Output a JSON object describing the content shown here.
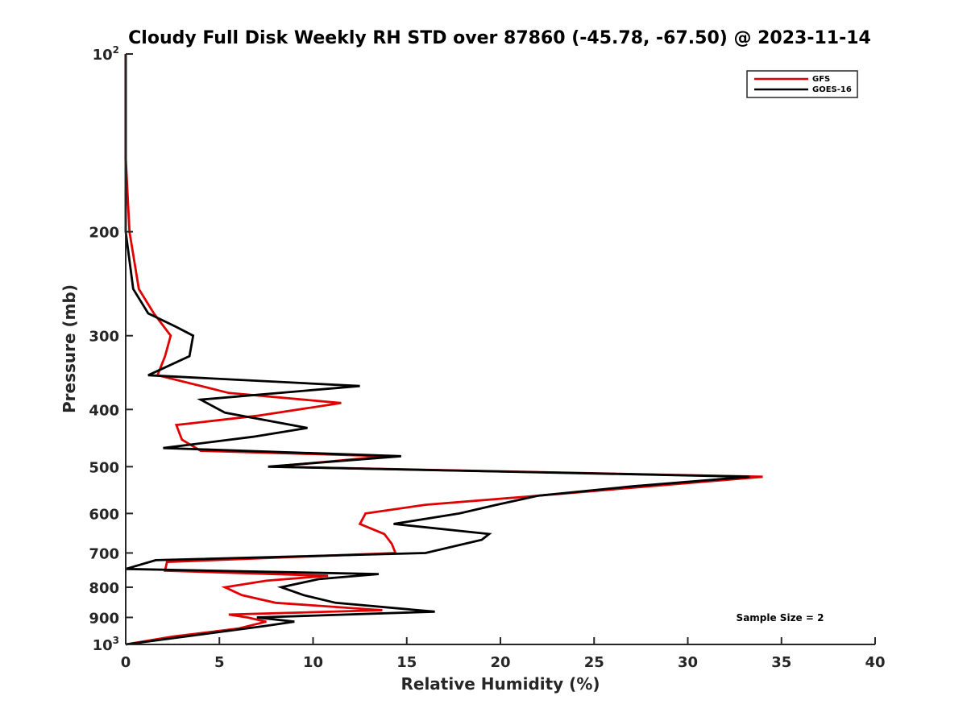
{
  "chart_data": {
    "type": "line",
    "title": "Cloudy Full Disk Weekly RH STD over 87860 (-45.78, -67.50) @ 2023-11-14",
    "xlabel": "Relative Humidity (%)",
    "ylabel": "Pressure (mb)",
    "xlim": [
      0,
      40
    ],
    "ylim": [
      100,
      1000
    ],
    "yscale": "log",
    "y_reversed": true,
    "x_ticks": [
      {
        "value": 0,
        "label": "0"
      },
      {
        "value": 5,
        "label": "5"
      },
      {
        "value": 10,
        "label": "10"
      },
      {
        "value": 15,
        "label": "15"
      },
      {
        "value": 20,
        "label": "20"
      },
      {
        "value": 25,
        "label": "25"
      },
      {
        "value": 30,
        "label": "30"
      },
      {
        "value": 35,
        "label": "35"
      },
      {
        "value": 40,
        "label": "40"
      }
    ],
    "y_ticks": [
      {
        "value": 100,
        "label": "10",
        "sup": "2"
      },
      {
        "value": 200,
        "label": "200"
      },
      {
        "value": 300,
        "label": "300"
      },
      {
        "value": 400,
        "label": "400"
      },
      {
        "value": 500,
        "label": "500"
      },
      {
        "value": 600,
        "label": "600"
      },
      {
        "value": 700,
        "label": "700"
      },
      {
        "value": 800,
        "label": "800"
      },
      {
        "value": 900,
        "label": "900"
      },
      {
        "value": 1000,
        "label": "10",
        "sup": "3"
      }
    ],
    "grid": false,
    "legend_position": "top-right",
    "annotation": "Sample Size = 2",
    "series": [
      {
        "name": "GFS",
        "color": "#e00000",
        "points": [
          [
            0.0,
            100
          ],
          [
            0.0,
            150
          ],
          [
            0.2,
            200
          ],
          [
            0.7,
            250
          ],
          [
            1.5,
            275
          ],
          [
            2.4,
            300
          ],
          [
            2.1,
            325
          ],
          [
            1.7,
            350
          ],
          [
            5.5,
            375
          ],
          [
            11.5,
            390
          ],
          [
            7.0,
            410
          ],
          [
            2.7,
            425
          ],
          [
            3.0,
            450
          ],
          [
            4.0,
            470
          ],
          [
            14.0,
            480
          ],
          [
            7.8,
            500
          ],
          [
            34.0,
            520
          ],
          [
            22.0,
            560
          ],
          [
            16.0,
            580
          ],
          [
            12.8,
            600
          ],
          [
            12.5,
            625
          ],
          [
            13.8,
            650
          ],
          [
            14.2,
            675
          ],
          [
            14.4,
            700
          ],
          [
            2.2,
            725
          ],
          [
            2.1,
            750
          ],
          [
            10.8,
            765
          ],
          [
            7.5,
            780
          ],
          [
            5.3,
            800
          ],
          [
            6.2,
            825
          ],
          [
            8.0,
            850
          ],
          [
            13.7,
            875
          ],
          [
            5.5,
            890
          ],
          [
            6.5,
            900
          ],
          [
            7.5,
            915
          ],
          [
            6.0,
            940
          ],
          [
            2.5,
            970
          ],
          [
            0.0,
            1000
          ]
        ]
      },
      {
        "name": "GOES-16",
        "color": "#000000",
        "points": [
          [
            0.0,
            100
          ],
          [
            0.0,
            200
          ],
          [
            0.4,
            250
          ],
          [
            1.2,
            275
          ],
          [
            2.7,
            290
          ],
          [
            3.6,
            300
          ],
          [
            3.4,
            325
          ],
          [
            1.2,
            350
          ],
          [
            12.5,
            365
          ],
          [
            4.0,
            385
          ],
          [
            5.3,
            405
          ],
          [
            9.7,
            430
          ],
          [
            6.8,
            445
          ],
          [
            2.0,
            465
          ],
          [
            14.7,
            480
          ],
          [
            7.6,
            500
          ],
          [
            33.3,
            520
          ],
          [
            27.0,
            540
          ],
          [
            22.0,
            560
          ],
          [
            19.8,
            580
          ],
          [
            17.8,
            600
          ],
          [
            14.3,
            625
          ],
          [
            19.4,
            650
          ],
          [
            19.0,
            665
          ],
          [
            16.0,
            700
          ],
          [
            1.6,
            720
          ],
          [
            0.0,
            745
          ],
          [
            13.5,
            760
          ],
          [
            10.3,
            775
          ],
          [
            8.3,
            800
          ],
          [
            9.5,
            825
          ],
          [
            11.2,
            850
          ],
          [
            16.5,
            880
          ],
          [
            7.0,
            900
          ],
          [
            9.0,
            915
          ],
          [
            7.5,
            930
          ],
          [
            0.0,
            1000
          ]
        ]
      }
    ]
  }
}
